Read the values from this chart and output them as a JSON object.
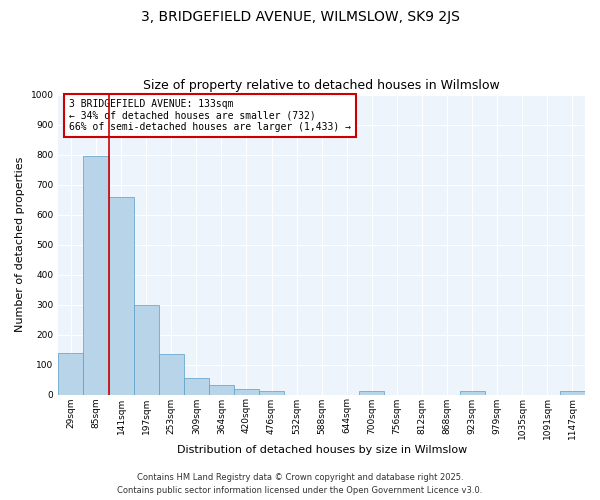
{
  "title": "3, BRIDGEFIELD AVENUE, WILMSLOW, SK9 2JS",
  "subtitle": "Size of property relative to detached houses in Wilmslow",
  "xlabel": "Distribution of detached houses by size in Wilmslow",
  "ylabel": "Number of detached properties",
  "categories": [
    "29sqm",
    "85sqm",
    "141sqm",
    "197sqm",
    "253sqm",
    "309sqm",
    "364sqm",
    "420sqm",
    "476sqm",
    "532sqm",
    "588sqm",
    "644sqm",
    "700sqm",
    "756sqm",
    "812sqm",
    "868sqm",
    "923sqm",
    "979sqm",
    "1035sqm",
    "1091sqm",
    "1147sqm"
  ],
  "values": [
    140,
    795,
    660,
    300,
    135,
    55,
    32,
    20,
    12,
    0,
    0,
    0,
    12,
    0,
    0,
    0,
    12,
    0,
    0,
    0,
    12
  ],
  "bar_color": "#b8d4e8",
  "bar_edge_color": "#5a9ec9",
  "vline_x": 2,
  "vline_color": "#cc0000",
  "annotation_text": "3 BRIDGEFIELD AVENUE: 133sqm\n← 34% of detached houses are smaller (732)\n66% of semi-detached houses are larger (1,433) →",
  "annotation_box_color": "#ffffff",
  "annotation_box_edgecolor": "#cc0000",
  "ylim": [
    0,
    1000
  ],
  "yticks": [
    0,
    100,
    200,
    300,
    400,
    500,
    600,
    700,
    800,
    900,
    1000
  ],
  "footer1": "Contains HM Land Registry data © Crown copyright and database right 2025.",
  "footer2": "Contains public sector information licensed under the Open Government Licence v3.0.",
  "bg_color": "#eef4fb",
  "grid_color": "#ffffff",
  "title_fontsize": 10,
  "subtitle_fontsize": 9,
  "tick_fontsize": 6.5,
  "label_fontsize": 8,
  "annotation_fontsize": 7,
  "footer_fontsize": 6
}
